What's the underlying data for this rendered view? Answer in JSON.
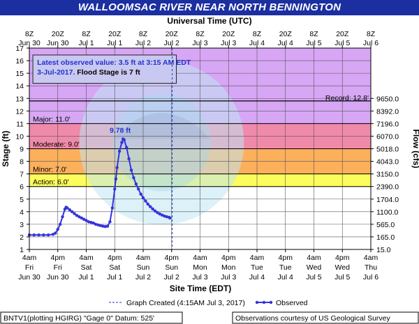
{
  "title": "WALLOOMSAC RIVER NEAR NORTH BENNINGTON",
  "colors": {
    "title_bg": "#1b2fa0",
    "series": "#3333dd",
    "record": "#d7a6f5",
    "major": "#f08aaa",
    "moderate": "#fcb05c",
    "minor": "#fcfc5c",
    "action": "#ffffff",
    "info_box": "#c8c8f0"
  },
  "top_axis": {
    "label": "Universal Time (UTC)",
    "ticks": [
      {
        "h": "8Z",
        "d": "Jun 30"
      },
      {
        "h": "20Z",
        "d": "Jun 30"
      },
      {
        "h": "8Z",
        "d": "Jul 1"
      },
      {
        "h": "20Z",
        "d": "Jul 1"
      },
      {
        "h": "8Z",
        "d": "Jul 2"
      },
      {
        "h": "20Z",
        "d": "Jul 2"
      },
      {
        "h": "8Z",
        "d": "Jul 3"
      },
      {
        "h": "20Z",
        "d": "Jul 3"
      },
      {
        "h": "8Z",
        "d": "Jul 4"
      },
      {
        "h": "20Z",
        "d": "Jul 4"
      },
      {
        "h": "8Z",
        "d": "Jul 5"
      },
      {
        "h": "20Z",
        "d": "Jul 5"
      },
      {
        "h": "8Z",
        "d": "Jul 6"
      }
    ]
  },
  "bottom_axis": {
    "label": "Site Time (EDT)",
    "ticks": [
      {
        "h": "4am",
        "w": "Fri",
        "d": "Jun 30"
      },
      {
        "h": "4pm",
        "w": "Fri",
        "d": "Jun 30"
      },
      {
        "h": "4am",
        "w": "Sat",
        "d": "Jul 1"
      },
      {
        "h": "4pm",
        "w": "Sat",
        "d": "Jul 1"
      },
      {
        "h": "4am",
        "w": "Sun",
        "d": "Jul 2"
      },
      {
        "h": "4pm",
        "w": "Sun",
        "d": "Jul 2"
      },
      {
        "h": "4am",
        "w": "Mon",
        "d": "Jul 3"
      },
      {
        "h": "4pm",
        "w": "Mon",
        "d": "Jul 3"
      },
      {
        "h": "4am",
        "w": "Tue",
        "d": "Jul 4"
      },
      {
        "h": "4pm",
        "w": "Tue",
        "d": "Jul 4"
      },
      {
        "h": "4am",
        "w": "Wed",
        "d": "Jul 5"
      },
      {
        "h": "4pm",
        "w": "Wed",
        "d": "Jul 5"
      },
      {
        "h": "4am",
        "w": "Thu",
        "d": "Jul 6"
      }
    ]
  },
  "left_axis": {
    "label": "Stage (ft)",
    "min": 1,
    "max": 17,
    "ticks": [
      1,
      2,
      3,
      4,
      5,
      6,
      7,
      8,
      9,
      10,
      11,
      12,
      13,
      14,
      15,
      16,
      17
    ]
  },
  "right_axis": {
    "label": "Flow (cfs)",
    "ticks": [
      {
        "stage": 1,
        "text": "15.0"
      },
      {
        "stage": 2,
        "text": "165.0"
      },
      {
        "stage": 3,
        "text": "565.0"
      },
      {
        "stage": 4,
        "text": "1100.0"
      },
      {
        "stage": 5,
        "text": "1704.0"
      },
      {
        "stage": 6,
        "text": "2390.0"
      },
      {
        "stage": 7,
        "text": "3150.0"
      },
      {
        "stage": 8,
        "text": "4043.0"
      },
      {
        "stage": 9,
        "text": "5018.0"
      },
      {
        "stage": 10,
        "text": "6070.0"
      },
      {
        "stage": 11,
        "text": "7196.0"
      },
      {
        "stage": 12,
        "text": "8392.0"
      },
      {
        "stage": 13,
        "text": "9650.0"
      }
    ]
  },
  "flood_bands": [
    {
      "name": "Major: 11.0'",
      "from": 11,
      "to": 17,
      "color": "#d7a6f5"
    },
    {
      "name": "Moderate: 9.0'",
      "from": 9,
      "to": 11,
      "color": "#f08aaa"
    },
    {
      "name": "Minor: 7.0'",
      "from": 7,
      "to": 9,
      "color": "#fcb05c"
    },
    {
      "name": "Action: 6.0'",
      "from": 6,
      "to": 7,
      "color": "#fcfc5c"
    }
  ],
  "record": {
    "label": "Record: 12.8'",
    "value": 12.8
  },
  "info_box": {
    "line1": "Latest observed value: 3.5 ft at 3:15 AM EDT",
    "line2_date": "3-Jul-2017.",
    "line2_flood": "Flood Stage is 7 ft"
  },
  "peak_label": "9.78 ft",
  "legend": {
    "created": "Graph Created (4:15AM Jul 3, 2017)",
    "observed": "Observed"
  },
  "footer": {
    "left": "BNTV1(plotting HGIRG) \"Gage 0\" Datum: 525'",
    "right": "Observations courtesy of US Geological Survey"
  },
  "chart_data": {
    "type": "line",
    "x_unit": "hours after 4am EDT Fri Jun 30",
    "xlim": [
      0,
      144
    ],
    "ylim": [
      1,
      17
    ],
    "series": [
      {
        "name": "Observed",
        "points": [
          [
            0,
            2.15
          ],
          [
            2,
            2.15
          ],
          [
            4,
            2.15
          ],
          [
            6,
            2.15
          ],
          [
            8,
            2.15
          ],
          [
            10,
            2.2
          ],
          [
            11,
            2.3
          ],
          [
            12,
            2.6
          ],
          [
            13,
            3.0
          ],
          [
            14,
            3.6
          ],
          [
            15,
            4.2
          ],
          [
            15.5,
            4.35
          ],
          [
            16,
            4.3
          ],
          [
            17,
            4.15
          ],
          [
            18,
            4.0
          ],
          [
            19,
            3.85
          ],
          [
            20,
            3.7
          ],
          [
            21,
            3.6
          ],
          [
            22,
            3.5
          ],
          [
            23,
            3.4
          ],
          [
            24,
            3.3
          ],
          [
            25,
            3.2
          ],
          [
            26,
            3.15
          ],
          [
            27,
            3.1
          ],
          [
            28,
            3.0
          ],
          [
            29,
            2.95
          ],
          [
            30,
            2.9
          ],
          [
            31,
            2.85
          ],
          [
            32,
            2.82
          ],
          [
            33,
            2.85
          ],
          [
            34,
            3.2
          ],
          [
            35,
            4.3
          ],
          [
            36,
            5.8
          ],
          [
            36.5,
            6.6
          ],
          [
            37,
            7.5
          ],
          [
            38,
            8.8
          ],
          [
            39,
            9.5
          ],
          [
            39.5,
            9.78
          ],
          [
            40,
            9.7
          ],
          [
            41,
            9.1
          ],
          [
            42,
            8.2
          ],
          [
            43,
            7.3
          ],
          [
            44,
            6.7
          ],
          [
            45,
            6.2
          ],
          [
            46,
            5.8
          ],
          [
            47,
            5.4
          ],
          [
            48,
            5.1
          ],
          [
            49,
            4.85
          ],
          [
            50,
            4.6
          ],
          [
            51,
            4.4
          ],
          [
            52,
            4.22
          ],
          [
            53,
            4.06
          ],
          [
            54,
            3.93
          ],
          [
            55,
            3.82
          ],
          [
            56,
            3.73
          ],
          [
            57,
            3.65
          ],
          [
            58,
            3.6
          ],
          [
            59,
            3.55
          ],
          [
            59.25,
            3.5
          ]
        ]
      }
    ],
    "graph_created_hour": 60.25
  }
}
